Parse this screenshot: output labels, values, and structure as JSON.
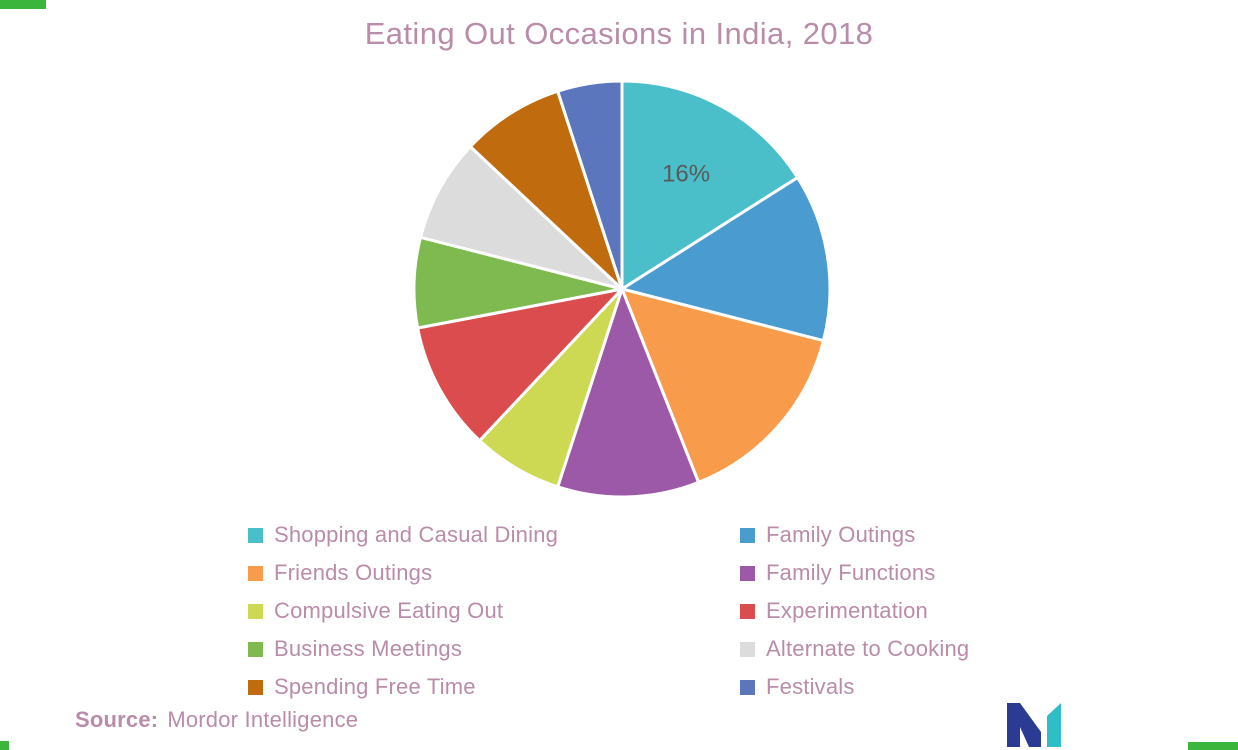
{
  "title": "Eating Out Occasions in India, 2018",
  "source": {
    "label": "Source:",
    "value": "Mordor Intelligence"
  },
  "colors": {
    "background": "#ffffff",
    "title_text": "#b98ca9",
    "legend_text": "#b98ca9",
    "source_text": "#b98ca9",
    "slice_label": "#595959",
    "logo_blue": "#2b3a92",
    "logo_teal": "#2fbdc8",
    "corner_mark": "#3bb53b"
  },
  "chart_data": {
    "type": "pie",
    "title": "Eating Out Occasions in India, 2018",
    "unit": "%",
    "start_angle_deg": 0,
    "direction": "clockwise",
    "legend_position": "bottom",
    "legend_columns": 2,
    "series": [
      {
        "name": "Shopping and Casual Dining",
        "value": 16,
        "color": "#4bbfc9",
        "label": "16%"
      },
      {
        "name": "Family Outings",
        "value": 13,
        "color": "#4a9bd0"
      },
      {
        "name": "Friends Outings",
        "value": 15,
        "color": "#f89b4b"
      },
      {
        "name": "Family Functions",
        "value": 11,
        "color": "#9b59a8"
      },
      {
        "name": "Compulsive Eating Out",
        "value": 7,
        "color": "#cdd952"
      },
      {
        "name": "Experimentation",
        "value": 10,
        "color": "#da4c4e"
      },
      {
        "name": "Business Meetings",
        "value": 7,
        "color": "#7eba50"
      },
      {
        "name": "Alternate to Cooking",
        "value": 8,
        "color": "#dcdcdc"
      },
      {
        "name": "Spending Free Time",
        "value": 8,
        "color": "#c06c0e"
      },
      {
        "name": "Festivals",
        "value": 5,
        "color": "#5b76bd"
      }
    ]
  }
}
